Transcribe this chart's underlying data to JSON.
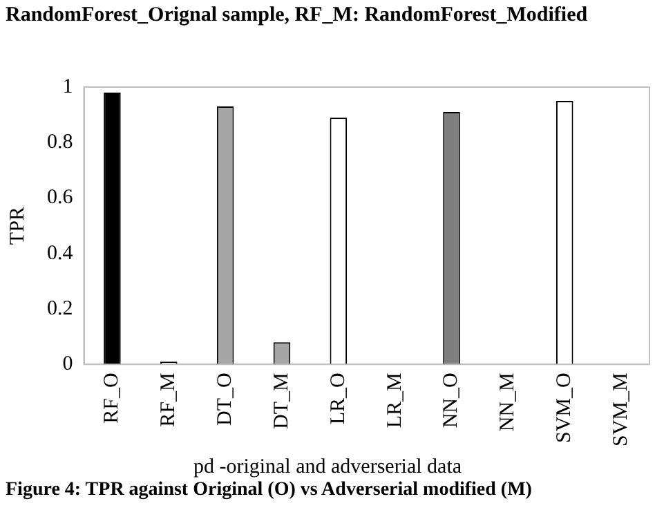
{
  "chart_data": {
    "type": "bar",
    "categories": [
      "RF_O",
      "RF_M",
      "DT_O",
      "DT_M",
      "LR_O",
      "LR_M",
      "NN_O",
      "NN_M",
      "SVM_O",
      "SVM_M"
    ],
    "values": [
      0.98,
      0.01,
      0.93,
      0.08,
      0.89,
      0,
      0.91,
      0,
      0.95,
      0
    ],
    "colors": [
      "#000000",
      "#ffffff",
      "#a6a6a6",
      "#a6a6a6",
      "#ffffff",
      "#ffffff",
      "#7f7f7f",
      "#7f7f7f",
      "#ffffff",
      "#ffffff"
    ],
    "ylabel": "TPR",
    "xlabel": "pd -original and adverserial data",
    "ylim": [
      0,
      1
    ],
    "yticks": [
      0,
      0.2,
      0.4,
      0.6,
      0.8,
      1
    ],
    "grid": false,
    "legend": false,
    "annotations": [
      "RandomForest_Orignal sample, RF_M: RandomForest_Modified",
      "Figure 4: TPR against Original (O) vs Adverserial modified (M)"
    ]
  }
}
